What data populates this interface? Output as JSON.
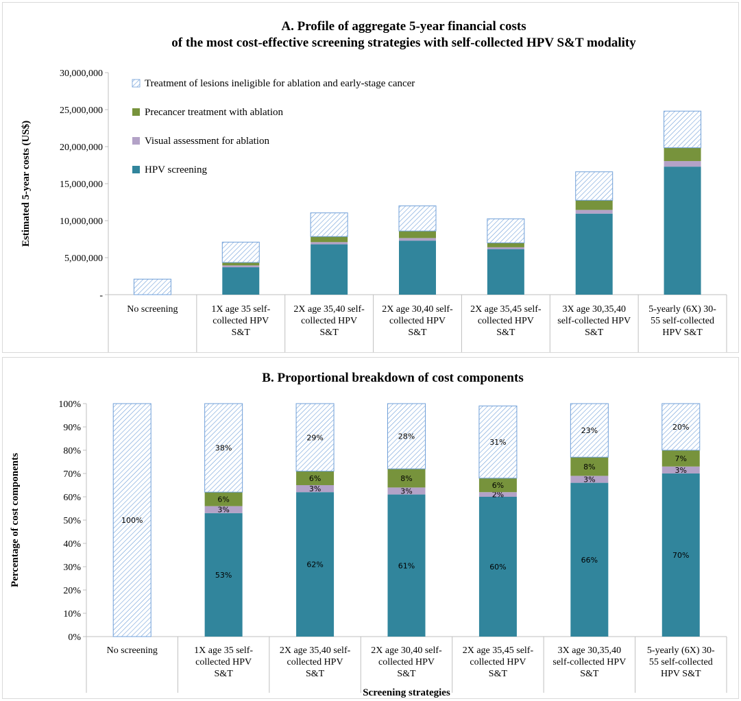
{
  "colors": {
    "hpv": "#31859c",
    "visual": "#b3a2c7",
    "precancer": "#77933c",
    "treatment_hatch": "#6f9fd8",
    "axis": "#bfbfbf"
  },
  "categories": [
    [
      "No screening"
    ],
    [
      "1X age 35 self-",
      "collected HPV",
      "S&T"
    ],
    [
      "2X age 35,40 self-",
      "collected HPV",
      "S&T"
    ],
    [
      "2X age 30,40 self-",
      "collected HPV",
      "S&T"
    ],
    [
      "2X age 35,45 self-",
      "collected HPV",
      "S&T"
    ],
    [
      "3X age 30,35,40",
      "self-collected HPV",
      "S&T"
    ],
    [
      "5-yearly (6X) 30-",
      "55 self-collected",
      "HPV S&T"
    ]
  ],
  "chart_data": [
    {
      "type": "bar",
      "stacked": true,
      "title": [
        "A. Profile of aggregate 5-year financial costs",
        "of the most cost-effective screening strategies with self-collected HPV S&T modality"
      ],
      "xlabel": "",
      "ylabel": "Estimated 5-year costs  (US$)",
      "ylim": [
        0,
        30000000
      ],
      "yticks": [
        0,
        5000000,
        10000000,
        15000000,
        20000000,
        25000000,
        30000000
      ],
      "ytick_labels": [
        "-",
        "5,000,000",
        "10,000,000",
        "15,000,000",
        "20,000,000",
        "25,000,000",
        "30,000,000"
      ],
      "legend_position": "top-left",
      "series": [
        {
          "name": "HPV screening",
          "key": "hpv",
          "values": [
            0,
            3700000,
            6800000,
            7300000,
            6150000,
            10950000,
            17300000
          ]
        },
        {
          "name": "Visual assessment for ablation",
          "key": "visual",
          "values": [
            0,
            250000,
            300000,
            350000,
            250000,
            500000,
            750000
          ]
        },
        {
          "name": "Precancer treatment with ablation",
          "key": "precancer",
          "values": [
            0,
            400000,
            750000,
            950000,
            600000,
            1300000,
            1800000
          ]
        },
        {
          "name": "Treatment of lesions ineligible for ablation and early-stage cancer",
          "key": "treatment",
          "values": [
            2100000,
            2750000,
            3200000,
            3400000,
            3250000,
            3850000,
            4950000
          ]
        }
      ]
    },
    {
      "type": "bar",
      "stacked": true,
      "title": "B. Proportional breakdown of cost components",
      "xlabel": "Screening strategies",
      "ylabel": "Percentage of cost components",
      "ylim": [
        0,
        100
      ],
      "yticks": [
        0,
        10,
        20,
        30,
        40,
        50,
        60,
        70,
        80,
        90,
        100
      ],
      "ytick_labels": [
        "0%",
        "10%",
        "20%",
        "30%",
        "40%",
        "50%",
        "60%",
        "70%",
        "80%",
        "90%",
        "100%"
      ],
      "series": [
        {
          "key": "hpv",
          "values": [
            0,
            53,
            62,
            61,
            60,
            66,
            70
          ],
          "labels": [
            "",
            "53%",
            "62%",
            "61%",
            "60%",
            "66%",
            "70%"
          ]
        },
        {
          "key": "visual",
          "values": [
            0,
            3,
            3,
            3,
            2,
            3,
            3
          ],
          "labels": [
            "",
            "3%",
            "3%",
            "3%",
            "2%",
            "3%",
            "3%"
          ]
        },
        {
          "key": "precancer",
          "values": [
            0,
            6,
            6,
            8,
            6,
            8,
            7
          ],
          "labels": [
            "",
            "6%",
            "6%",
            "8%",
            "6%",
            "8%",
            "7%"
          ]
        },
        {
          "key": "treatment",
          "values": [
            100,
            38,
            29,
            28,
            31,
            23,
            20
          ],
          "labels": [
            "100%",
            "38%",
            "29%",
            "28%",
            "31%",
            "23%",
            "20%"
          ]
        }
      ]
    }
  ]
}
